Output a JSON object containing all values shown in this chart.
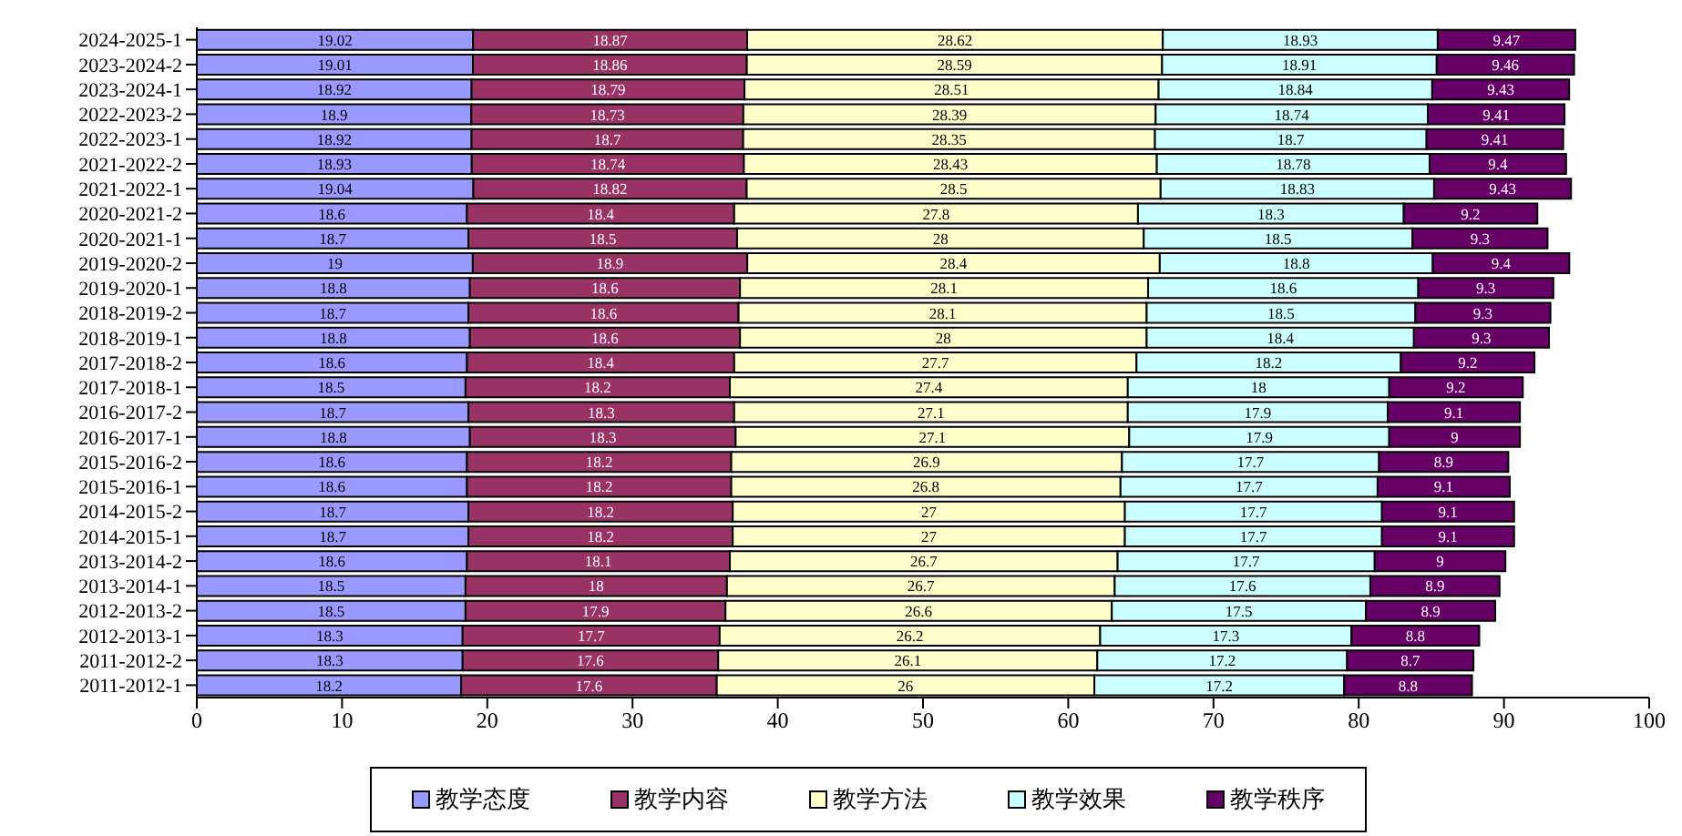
{
  "chart_data": {
    "type": "bar",
    "orientation": "horizontal",
    "stacked": true,
    "data_labels": true,
    "grid": false,
    "legend": "bottom",
    "categories": [
      "2024-2025-1",
      "2023-2024-2",
      "2023-2024-1",
      "2022-2023-2",
      "2022-2023-1",
      "2021-2022-2",
      "2021-2022-1",
      "2020-2021-2",
      "2020-2021-1",
      "2019-2020-2",
      "2019-2020-1",
      "2018-2019-2",
      "2018-2019-1",
      "2017-2018-2",
      "2017-2018-1",
      "2016-2017-2",
      "2016-2017-1",
      "2015-2016-2",
      "2015-2016-1",
      "2014-2015-2",
      "2014-2015-1",
      "2013-2014-2",
      "2013-2014-1",
      "2012-2013-2",
      "2012-2013-1",
      "2011-2012-2",
      "2011-2012-1"
    ],
    "xlim": [
      0,
      100
    ],
    "xticks": [
      0,
      10,
      20,
      30,
      40,
      50,
      60,
      70,
      80,
      90,
      100
    ],
    "series": [
      {
        "name": "教学态度",
        "color": "#9999ff",
        "values": [
          19.02,
          19.01,
          18.92,
          18.9,
          18.92,
          18.93,
          19.04,
          18.6,
          18.7,
          19,
          18.8,
          18.7,
          18.8,
          18.6,
          18.5,
          18.7,
          18.8,
          18.6,
          18.6,
          18.7,
          18.7,
          18.6,
          18.5,
          18.5,
          18.3,
          18.3,
          18.2
        ]
      },
      {
        "name": "教学内容",
        "color": "#993366",
        "values": [
          18.87,
          18.86,
          18.79,
          18.73,
          18.7,
          18.74,
          18.82,
          18.4,
          18.5,
          18.9,
          18.6,
          18.6,
          18.6,
          18.4,
          18.2,
          18.3,
          18.3,
          18.2,
          18.2,
          18.2,
          18.2,
          18.1,
          18,
          17.9,
          17.7,
          17.6,
          17.6
        ]
      },
      {
        "name": "教学方法",
        "color": "#ffffcc",
        "values": [
          28.62,
          28.59,
          28.51,
          28.39,
          28.35,
          28.43,
          28.5,
          27.8,
          28,
          28.4,
          28.1,
          28.1,
          28,
          27.7,
          27.4,
          27.1,
          27.1,
          26.9,
          26.8,
          27,
          27,
          26.7,
          26.7,
          26.6,
          26.2,
          26.1,
          26
        ]
      },
      {
        "name": "教学效果",
        "color": "#ccffff",
        "values": [
          18.93,
          18.91,
          18.84,
          18.74,
          18.7,
          18.78,
          18.83,
          18.3,
          18.5,
          18.8,
          18.6,
          18.5,
          18.4,
          18.2,
          18,
          17.9,
          17.9,
          17.7,
          17.7,
          17.7,
          17.7,
          17.7,
          17.6,
          17.5,
          17.3,
          17.2,
          17.2
        ]
      },
      {
        "name": "教学秩序",
        "color": "#660066",
        "values": [
          9.47,
          9.46,
          9.43,
          9.41,
          9.41,
          9.4,
          9.43,
          9.2,
          9.3,
          9.4,
          9.3,
          9.3,
          9.3,
          9.2,
          9.2,
          9.1,
          9,
          8.9,
          9.1,
          9.1,
          9.1,
          9,
          8.9,
          8.9,
          8.8,
          8.7,
          8.8
        ]
      }
    ]
  }
}
